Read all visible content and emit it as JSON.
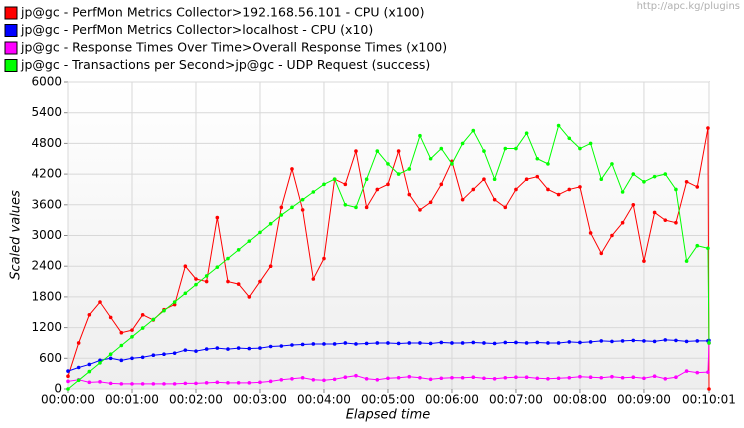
{
  "chart_data": {
    "type": "line",
    "watermark": "http://apc.kg/plugins",
    "y_label": "Scaled values",
    "x_label": "Elapsed time",
    "grid": true,
    "legend": "top",
    "x": [
      0,
      10,
      20,
      30,
      40,
      50,
      60,
      70,
      80,
      90,
      100,
      110,
      120,
      130,
      140,
      150,
      160,
      170,
      180,
      190,
      200,
      210,
      220,
      230,
      240,
      250,
      260,
      270,
      280,
      290,
      300,
      310,
      320,
      330,
      340,
      350,
      360,
      370,
      380,
      390,
      400,
      410,
      420,
      430,
      440,
      450,
      460,
      470,
      480,
      490,
      500,
      510,
      520,
      530,
      540,
      550,
      560,
      570,
      580,
      590,
      600,
      601
    ],
    "xlim": [
      0,
      601
    ],
    "xticks": [
      {
        "value": 0,
        "label": "00:00:00"
      },
      {
        "value": 60,
        "label": "00:01:00"
      },
      {
        "value": 120,
        "label": "00:02:00"
      },
      {
        "value": 180,
        "label": "00:03:00"
      },
      {
        "value": 240,
        "label": "00:04:00"
      },
      {
        "value": 300,
        "label": "00:05:00"
      },
      {
        "value": 360,
        "label": "00:06:00"
      },
      {
        "value": 420,
        "label": "00:07:00"
      },
      {
        "value": 480,
        "label": "00:08:00"
      },
      {
        "value": 540,
        "label": "00:09:00"
      },
      {
        "value": 601,
        "label": "00:10:01"
      }
    ],
    "ylim": [
      0,
      6000
    ],
    "yticks": [
      0,
      600,
      1200,
      1800,
      2400,
      3000,
      3600,
      4200,
      4800,
      5400,
      6000
    ],
    "series": [
      {
        "name": "jp@gc - PerfMon Metrics Collector>192.168.56.101 - CPU (x100)",
        "color": "#ff0000",
        "values": [
          250,
          900,
          1450,
          1700,
          1400,
          1100,
          1150,
          1450,
          1350,
          1550,
          1650,
          2400,
          2150,
          2100,
          3350,
          2100,
          2050,
          1800,
          2100,
          2400,
          3550,
          4300,
          3500,
          2150,
          2550,
          4100,
          4000,
          4650,
          3550,
          3900,
          4000,
          4650,
          3800,
          3500,
          3650,
          4000,
          4450,
          3700,
          3900,
          4100,
          3700,
          3550,
          3900,
          4100,
          4150,
          3900,
          3800,
          3900,
          3950,
          3050,
          2650,
          3000,
          3250,
          3600,
          2500,
          3450,
          3300,
          3250,
          4050,
          3950,
          5100,
          0
        ]
      },
      {
        "name": "jp@gc - PerfMon Metrics Collector>localhost - CPU (x10)",
        "color": "#0000ff",
        "values": [
          350,
          420,
          480,
          560,
          600,
          560,
          600,
          620,
          660,
          680,
          700,
          760,
          740,
          780,
          800,
          780,
          800,
          790,
          800,
          830,
          840,
          860,
          870,
          880,
          880,
          880,
          900,
          880,
          890,
          900,
          900,
          890,
          900,
          900,
          890,
          910,
          900,
          900,
          910,
          900,
          890,
          910,
          910,
          900,
          910,
          900,
          900,
          920,
          910,
          920,
          940,
          930,
          940,
          950,
          940,
          930,
          960,
          950,
          930,
          940,
          940,
          950
        ]
      },
      {
        "name": "jp@gc - Response Times Over Time>Overall Response Times (x100)",
        "color": "#ff00ff",
        "values": [
          150,
          180,
          130,
          140,
          110,
          100,
          100,
          100,
          100,
          100,
          100,
          110,
          110,
          120,
          130,
          120,
          120,
          120,
          130,
          150,
          180,
          200,
          220,
          180,
          170,
          190,
          230,
          260,
          200,
          180,
          210,
          220,
          240,
          220,
          190,
          210,
          220,
          220,
          230,
          210,
          200,
          220,
          230,
          230,
          210,
          200,
          210,
          220,
          240,
          230,
          220,
          240,
          220,
          230,
          210,
          250,
          200,
          230,
          350,
          320,
          330,
          900
        ]
      },
      {
        "name": "jp@gc - Transactions per Second>jp@gc - UDP Request (success)",
        "color": "#00ff00",
        "values": [
          0,
          170,
          340,
          510,
          680,
          850,
          1020,
          1190,
          1360,
          1530,
          1700,
          1870,
          2040,
          2210,
          2380,
          2550,
          2720,
          2890,
          3060,
          3230,
          3400,
          3550,
          3700,
          3850,
          4000,
          4100,
          3600,
          3550,
          4100,
          4650,
          4400,
          4200,
          4300,
          4950,
          4500,
          4700,
          4400,
          4800,
          5050,
          4650,
          4100,
          4700,
          4700,
          5000,
          4500,
          4400,
          5150,
          4900,
          4700,
          4800,
          4100,
          4400,
          3850,
          4200,
          4050,
          4150,
          4200,
          3900,
          2500,
          2800,
          2750,
          900
        ]
      }
    ]
  }
}
